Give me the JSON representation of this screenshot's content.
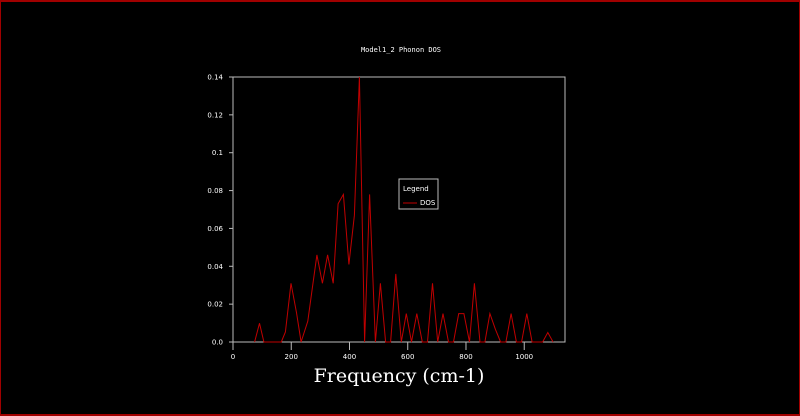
{
  "chart_data": {
    "type": "line",
    "title": "Model1_2 Phonon DOS",
    "xlabel": "Frequency (cm-1)",
    "ylabel": "",
    "xlim": [
      0,
      1140
    ],
    "ylim": [
      0,
      0.14
    ],
    "xticks": [
      "0",
      "200",
      "400",
      "600",
      "800",
      "1000"
    ],
    "xtick_values": [
      0,
      200,
      400,
      600,
      800,
      1000
    ],
    "yticks": [
      "0.0",
      "0.02",
      "0.04",
      "0.06",
      "0.08",
      "0.1",
      "0.12",
      "0.14"
    ],
    "ytick_values": [
      0,
      0.02,
      0.04,
      0.06,
      0.08,
      0.1,
      0.12,
      0.14
    ],
    "legend": {
      "title": "Legend",
      "placement": "center",
      "entries": [
        "DOS"
      ]
    },
    "series": [
      {
        "name": "DOS",
        "color": "#c00000",
        "x": [
          74,
          91,
          106,
          166,
          180,
          199,
          218,
          234,
          257,
          272,
          288,
          307,
          325,
          344,
          361,
          379,
          398,
          417,
          434,
          452,
          469,
          489,
          506,
          524,
          541,
          559,
          578,
          595,
          613,
          631,
          650,
          668,
          685,
          703,
          721,
          740,
          757,
          775,
          793,
          812,
          829,
          848,
          865,
          882,
          901,
          919,
          937,
          955,
          973,
          991,
          1009,
          1027,
          1063,
          1081,
          1099
        ],
        "y": [
          0,
          0.0099,
          0,
          0,
          0.0053,
          0.031,
          0.0155,
          0,
          0.011,
          0.028,
          0.046,
          0.031,
          0.046,
          0.031,
          0.073,
          0.078,
          0.041,
          0.067,
          0.14,
          0,
          0.078,
          0,
          0.031,
          0,
          0,
          0.036,
          0,
          0.015,
          0,
          0.015,
          0,
          0,
          0.031,
          0,
          0.015,
          0,
          0,
          0.015,
          0.015,
          0,
          0.031,
          0,
          0,
          0.015,
          0.0067,
          0,
          0,
          0.015,
          0,
          0,
          0.015,
          0,
          0,
          0.005,
          0
        ]
      }
    ]
  }
}
